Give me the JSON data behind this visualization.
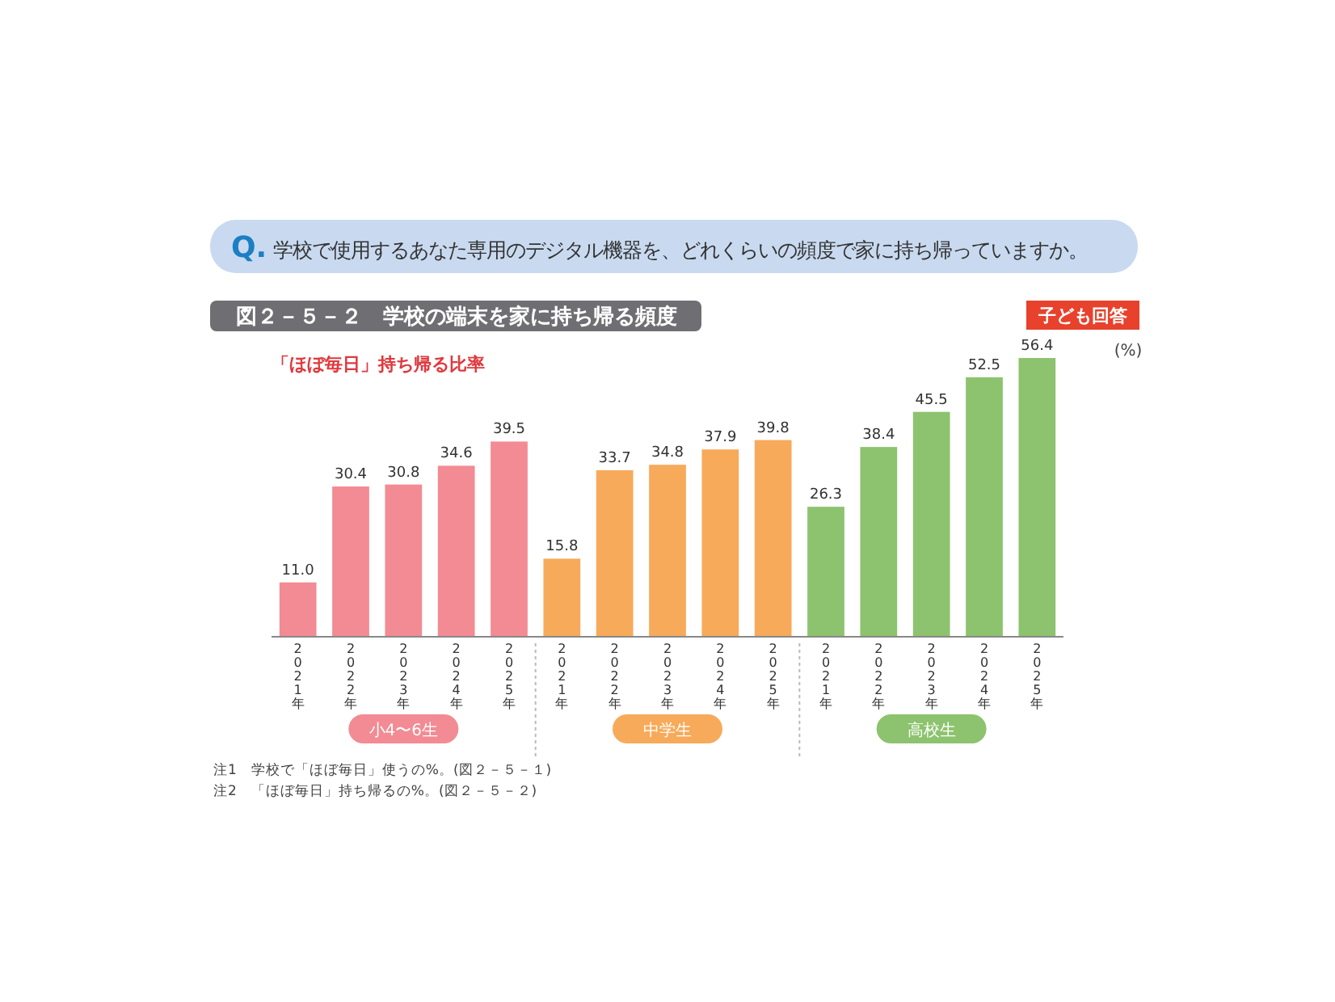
{
  "chart_data": {
    "type": "bar",
    "title": "図２－５－２　学校の端末を家に持ち帰る頻度",
    "subtitle": "Q. 学校で使用するあなた専用のデジタル機器を、どれくらいの頻度で家に持ち帰っていますか。",
    "ylabel": "(%)",
    "categories": [
      "2021年",
      "2022年",
      "2023年",
      "2024年",
      "2025年",
      "2021年",
      "2022年",
      "2023年",
      "2024年",
      "2025年",
      "2021年",
      "2022年",
      "2023年",
      "2024年",
      "2025年"
    ],
    "series": [
      {
        "name": "小4〜6生",
        "color": "#f28b93",
        "values": [
          11.0,
          30.4,
          30.8,
          34.6,
          39.5,
          null,
          null,
          null,
          null,
          null,
          null,
          null,
          null,
          null,
          null
        ],
        "value_labels": [
          "11.0",
          "30.4",
          "30.8",
          "34.6",
          "39.5",
          null,
          null,
          null,
          null,
          null,
          null,
          null,
          null,
          null,
          null
        ]
      },
      {
        "name": "中学生",
        "color": "#f7aa5a",
        "values": [
          null,
          null,
          null,
          null,
          null,
          15.8,
          33.7,
          34.8,
          37.9,
          39.8,
          null,
          null,
          null,
          null,
          null
        ],
        "value_labels": [
          null,
          null,
          null,
          null,
          null,
          "15.8",
          "33.7",
          "34.8",
          "37.9",
          "39.8",
          null,
          null,
          null,
          null,
          null
        ]
      },
      {
        "name": "高校生",
        "color": "#8dc36e",
        "values": [
          null,
          null,
          null,
          null,
          null,
          null,
          null,
          null,
          null,
          null,
          26.3,
          38.4,
          45.5,
          52.5,
          56.4
        ],
        "value_labels": [
          null,
          null,
          null,
          null,
          null,
          null,
          null,
          null,
          null,
          null,
          "26.3",
          "38.4",
          "45.5",
          "52.5",
          "56.4"
        ]
      }
    ],
    "legend": "bottom",
    "annotations": [
      "子ども回答",
      "「ほぼ毎日」持ち帰る比率",
      "注1　学校で「ほぼ毎日」使うの%。(図２－５－１)",
      "注2　「ほぼ毎日」持ち帰るの%。(図２－５－２)"
    ]
  }
}
